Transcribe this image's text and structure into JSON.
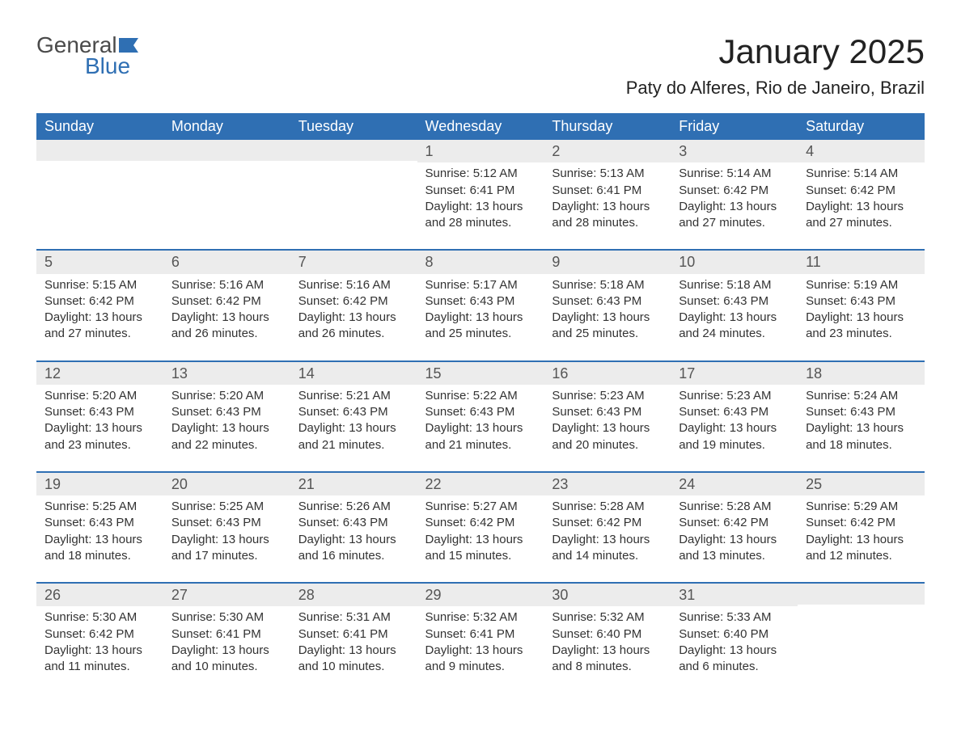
{
  "brand": {
    "text1": "General",
    "text2": "Blue",
    "flag_color": "#2f6fb3"
  },
  "title": "January 2025",
  "location": "Paty do Alferes, Rio de Janeiro, Brazil",
  "colors": {
    "header_bg": "#2f6fb3",
    "header_text": "#ffffff",
    "daybar_bg": "#ececec",
    "daybar_text": "#555555",
    "body_text": "#333333",
    "page_bg": "#ffffff",
    "rule": "#2f6fb3"
  },
  "typography": {
    "month_title_size": 42,
    "location_size": 22,
    "header_size": 18,
    "daynum_size": 18,
    "body_size": 15,
    "font_family": "Arial"
  },
  "day_headers": [
    "Sunday",
    "Monday",
    "Tuesday",
    "Wednesday",
    "Thursday",
    "Friday",
    "Saturday"
  ],
  "weeks": [
    [
      {
        "day": "",
        "sunrise": "",
        "sunset": "",
        "daylight": ""
      },
      {
        "day": "",
        "sunrise": "",
        "sunset": "",
        "daylight": ""
      },
      {
        "day": "",
        "sunrise": "",
        "sunset": "",
        "daylight": ""
      },
      {
        "day": "1",
        "sunrise": "Sunrise: 5:12 AM",
        "sunset": "Sunset: 6:41 PM",
        "daylight": "Daylight: 13 hours and 28 minutes."
      },
      {
        "day": "2",
        "sunrise": "Sunrise: 5:13 AM",
        "sunset": "Sunset: 6:41 PM",
        "daylight": "Daylight: 13 hours and 28 minutes."
      },
      {
        "day": "3",
        "sunrise": "Sunrise: 5:14 AM",
        "sunset": "Sunset: 6:42 PM",
        "daylight": "Daylight: 13 hours and 27 minutes."
      },
      {
        "day": "4",
        "sunrise": "Sunrise: 5:14 AM",
        "sunset": "Sunset: 6:42 PM",
        "daylight": "Daylight: 13 hours and 27 minutes."
      }
    ],
    [
      {
        "day": "5",
        "sunrise": "Sunrise: 5:15 AM",
        "sunset": "Sunset: 6:42 PM",
        "daylight": "Daylight: 13 hours and 27 minutes."
      },
      {
        "day": "6",
        "sunrise": "Sunrise: 5:16 AM",
        "sunset": "Sunset: 6:42 PM",
        "daylight": "Daylight: 13 hours and 26 minutes."
      },
      {
        "day": "7",
        "sunrise": "Sunrise: 5:16 AM",
        "sunset": "Sunset: 6:42 PM",
        "daylight": "Daylight: 13 hours and 26 minutes."
      },
      {
        "day": "8",
        "sunrise": "Sunrise: 5:17 AM",
        "sunset": "Sunset: 6:43 PM",
        "daylight": "Daylight: 13 hours and 25 minutes."
      },
      {
        "day": "9",
        "sunrise": "Sunrise: 5:18 AM",
        "sunset": "Sunset: 6:43 PM",
        "daylight": "Daylight: 13 hours and 25 minutes."
      },
      {
        "day": "10",
        "sunrise": "Sunrise: 5:18 AM",
        "sunset": "Sunset: 6:43 PM",
        "daylight": "Daylight: 13 hours and 24 minutes."
      },
      {
        "day": "11",
        "sunrise": "Sunrise: 5:19 AM",
        "sunset": "Sunset: 6:43 PM",
        "daylight": "Daylight: 13 hours and 23 minutes."
      }
    ],
    [
      {
        "day": "12",
        "sunrise": "Sunrise: 5:20 AM",
        "sunset": "Sunset: 6:43 PM",
        "daylight": "Daylight: 13 hours and 23 minutes."
      },
      {
        "day": "13",
        "sunrise": "Sunrise: 5:20 AM",
        "sunset": "Sunset: 6:43 PM",
        "daylight": "Daylight: 13 hours and 22 minutes."
      },
      {
        "day": "14",
        "sunrise": "Sunrise: 5:21 AM",
        "sunset": "Sunset: 6:43 PM",
        "daylight": "Daylight: 13 hours and 21 minutes."
      },
      {
        "day": "15",
        "sunrise": "Sunrise: 5:22 AM",
        "sunset": "Sunset: 6:43 PM",
        "daylight": "Daylight: 13 hours and 21 minutes."
      },
      {
        "day": "16",
        "sunrise": "Sunrise: 5:23 AM",
        "sunset": "Sunset: 6:43 PM",
        "daylight": "Daylight: 13 hours and 20 minutes."
      },
      {
        "day": "17",
        "sunrise": "Sunrise: 5:23 AM",
        "sunset": "Sunset: 6:43 PM",
        "daylight": "Daylight: 13 hours and 19 minutes."
      },
      {
        "day": "18",
        "sunrise": "Sunrise: 5:24 AM",
        "sunset": "Sunset: 6:43 PM",
        "daylight": "Daylight: 13 hours and 18 minutes."
      }
    ],
    [
      {
        "day": "19",
        "sunrise": "Sunrise: 5:25 AM",
        "sunset": "Sunset: 6:43 PM",
        "daylight": "Daylight: 13 hours and 18 minutes."
      },
      {
        "day": "20",
        "sunrise": "Sunrise: 5:25 AM",
        "sunset": "Sunset: 6:43 PM",
        "daylight": "Daylight: 13 hours and 17 minutes."
      },
      {
        "day": "21",
        "sunrise": "Sunrise: 5:26 AM",
        "sunset": "Sunset: 6:43 PM",
        "daylight": "Daylight: 13 hours and 16 minutes."
      },
      {
        "day": "22",
        "sunrise": "Sunrise: 5:27 AM",
        "sunset": "Sunset: 6:42 PM",
        "daylight": "Daylight: 13 hours and 15 minutes."
      },
      {
        "day": "23",
        "sunrise": "Sunrise: 5:28 AM",
        "sunset": "Sunset: 6:42 PM",
        "daylight": "Daylight: 13 hours and 14 minutes."
      },
      {
        "day": "24",
        "sunrise": "Sunrise: 5:28 AM",
        "sunset": "Sunset: 6:42 PM",
        "daylight": "Daylight: 13 hours and 13 minutes."
      },
      {
        "day": "25",
        "sunrise": "Sunrise: 5:29 AM",
        "sunset": "Sunset: 6:42 PM",
        "daylight": "Daylight: 13 hours and 12 minutes."
      }
    ],
    [
      {
        "day": "26",
        "sunrise": "Sunrise: 5:30 AM",
        "sunset": "Sunset: 6:42 PM",
        "daylight": "Daylight: 13 hours and 11 minutes."
      },
      {
        "day": "27",
        "sunrise": "Sunrise: 5:30 AM",
        "sunset": "Sunset: 6:41 PM",
        "daylight": "Daylight: 13 hours and 10 minutes."
      },
      {
        "day": "28",
        "sunrise": "Sunrise: 5:31 AM",
        "sunset": "Sunset: 6:41 PM",
        "daylight": "Daylight: 13 hours and 10 minutes."
      },
      {
        "day": "29",
        "sunrise": "Sunrise: 5:32 AM",
        "sunset": "Sunset: 6:41 PM",
        "daylight": "Daylight: 13 hours and 9 minutes."
      },
      {
        "day": "30",
        "sunrise": "Sunrise: 5:32 AM",
        "sunset": "Sunset: 6:40 PM",
        "daylight": "Daylight: 13 hours and 8 minutes."
      },
      {
        "day": "31",
        "sunrise": "Sunrise: 5:33 AM",
        "sunset": "Sunset: 6:40 PM",
        "daylight": "Daylight: 13 hours and 6 minutes."
      },
      {
        "day": "",
        "sunrise": "",
        "sunset": "",
        "daylight": ""
      }
    ]
  ]
}
